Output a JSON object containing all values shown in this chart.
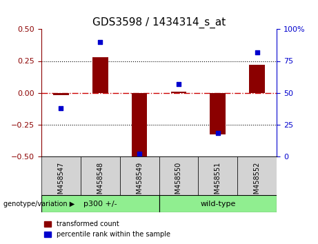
{
  "title": "GDS3598 / 1434314_s_at",
  "samples": [
    "GSM458547",
    "GSM458548",
    "GSM458549",
    "GSM458550",
    "GSM458551",
    "GSM458552"
  ],
  "transformed_count": [
    -0.02,
    0.28,
    -0.51,
    0.01,
    -0.33,
    0.22
  ],
  "percentile_rank": [
    38,
    90,
    2,
    57,
    18,
    82
  ],
  "bar_color": "#8B0000",
  "dot_color": "#0000CD",
  "ylim_left": [
    -0.5,
    0.5
  ],
  "ylim_right": [
    0,
    100
  ],
  "yticks_left": [
    -0.5,
    -0.25,
    0,
    0.25,
    0.5
  ],
  "yticks_right": [
    0,
    25,
    50,
    75,
    100
  ],
  "hline_color": "#CC0000",
  "hline_style": "dashdot",
  "dotted_line_color": "black",
  "groups": [
    {
      "label": "p300 +/-",
      "indices": [
        0,
        1,
        2
      ],
      "color": "#90EE90"
    },
    {
      "label": "wild-type",
      "indices": [
        3,
        4,
        5
      ],
      "color": "#90EE90"
    }
  ],
  "group_label_prefix": "genotype/variation",
  "legend_bar_label": "transformed count",
  "legend_dot_label": "percentile rank within the sample",
  "bar_width": 0.4,
  "background_plot": "#FFFFFF",
  "tick_area_color": "#D3D3D3",
  "group_box_color": "#90EE90",
  "title_fontsize": 11,
  "tick_fontsize": 8,
  "label_fontsize": 8
}
